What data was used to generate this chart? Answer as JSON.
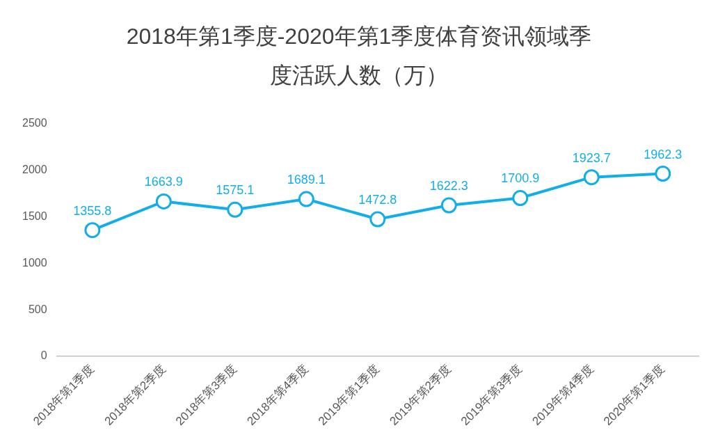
{
  "chart_data": {
    "type": "line",
    "title": "2018年第1季度-2020年第1季度体育资讯领域季度活跃人数（万）",
    "categories": [
      "2018年第1季度",
      "2018年第2季度",
      "2018年第3季度",
      "2018年第4季度",
      "2019年第1季度",
      "2019年第2季度",
      "2019年第3季度",
      "2019年第4季度",
      "2020年第1季度"
    ],
    "values": [
      1355.8,
      1663.9,
      1575.1,
      1689.1,
      1472.8,
      1622.3,
      1700.9,
      1923.7,
      1962.3
    ],
    "color": "#12aeea",
    "marker": "circle",
    "data_labels": true,
    "ylim": [
      0,
      2500
    ],
    "yticks": [
      0,
      500,
      1000,
      1500,
      2000,
      2500
    ]
  }
}
